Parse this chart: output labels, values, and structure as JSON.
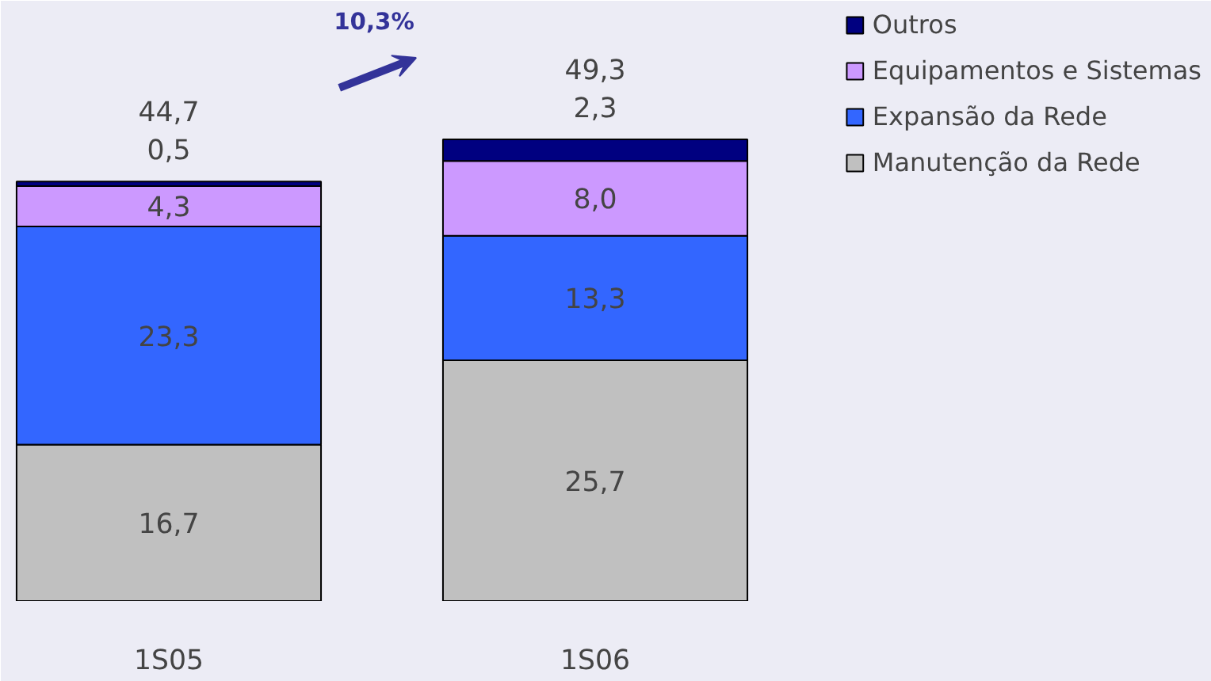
{
  "chart_data": {
    "type": "bar",
    "stacked": true,
    "categories": [
      "1S05",
      "1S06"
    ],
    "series": [
      {
        "name": "Manutenção da Rede",
        "color": "#c0c0c0",
        "values": [
          16.7,
          25.7
        ],
        "value_labels": [
          "16,7",
          "25,7"
        ]
      },
      {
        "name": "Expansão da Rede",
        "color": "#3366ff",
        "values": [
          23.3,
          13.3
        ],
        "value_labels": [
          "23,3",
          "13,3"
        ]
      },
      {
        "name": "Equipamentos e Sistemas",
        "color": "#cc99ff",
        "values": [
          4.3,
          8.0
        ],
        "value_labels": [
          "4,3",
          "8,0"
        ]
      },
      {
        "name": "Outros",
        "color": "#000080",
        "values": [
          0.5,
          2.3
        ],
        "value_labels": [
          "0,5",
          "2,3"
        ]
      }
    ],
    "totals": [
      "44,7",
      "49,3"
    ],
    "annotations": [
      "10,3%"
    ],
    "legend": "right",
    "grid": false
  }
}
